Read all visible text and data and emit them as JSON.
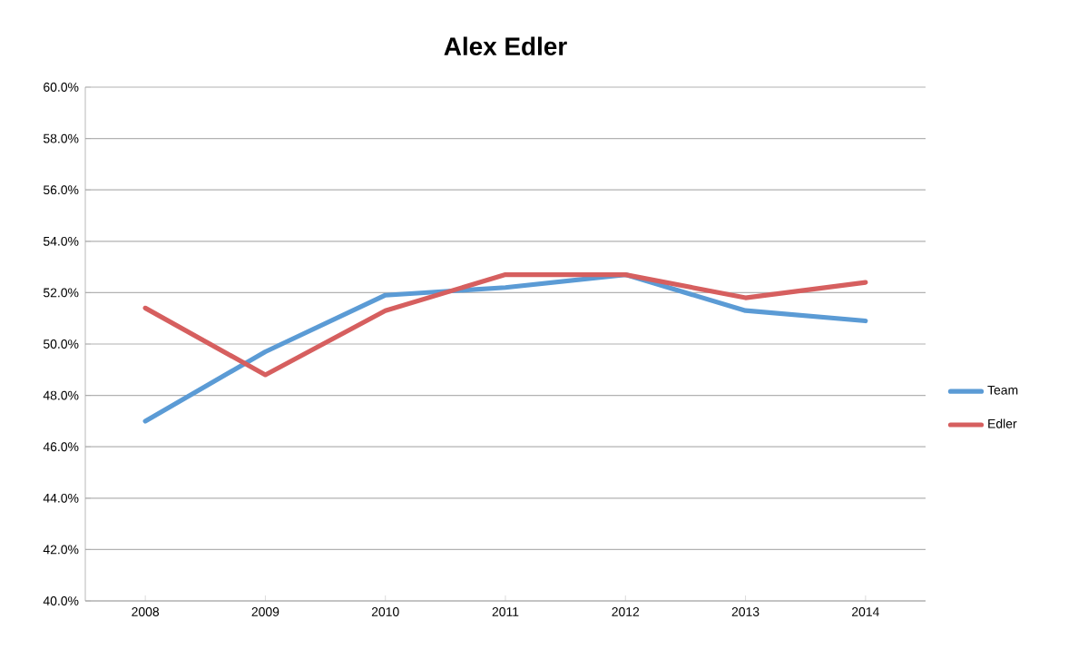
{
  "chart_data": {
    "type": "line",
    "title": "Alex Edler",
    "categories": [
      "2008",
      "2009",
      "2010",
      "2011",
      "2012",
      "2013",
      "2014"
    ],
    "series": [
      {
        "name": "Team",
        "color": "#5b9bd5",
        "values": [
          47.0,
          49.7,
          51.9,
          52.2,
          52.7,
          51.3,
          50.9
        ]
      },
      {
        "name": "Edler",
        "color": "#d65f5f",
        "values": [
          51.4,
          48.8,
          51.3,
          52.7,
          52.7,
          51.8,
          52.4
        ]
      }
    ],
    "ylim": [
      40,
      60
    ],
    "yticks": [
      {
        "value": 40,
        "label": "40.0%"
      },
      {
        "value": 42,
        "label": "42.0%"
      },
      {
        "value": 44,
        "label": "44.0%"
      },
      {
        "value": 46,
        "label": "46.0%"
      },
      {
        "value": 48,
        "label": "48.0%"
      },
      {
        "value": 50,
        "label": "50.0%"
      },
      {
        "value": 52,
        "label": "52.0%"
      },
      {
        "value": 54,
        "label": "54.0%"
      },
      {
        "value": 56,
        "label": "56.0%"
      },
      {
        "value": 58,
        "label": "58.0%"
      },
      {
        "value": 60,
        "label": "60.0%"
      }
    ],
    "grid": "y",
    "legend": "right",
    "marker": "none",
    "line_style": "solid"
  }
}
